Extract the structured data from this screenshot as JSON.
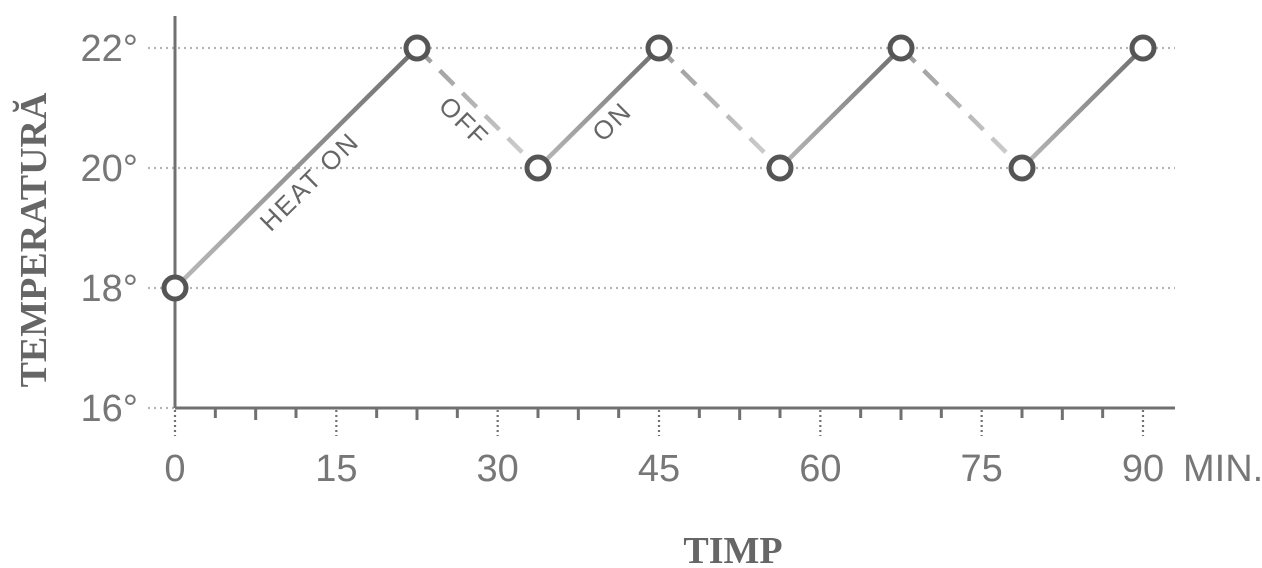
{
  "chart_data": {
    "type": "line",
    "title": "",
    "xlabel": "TIMP",
    "ylabel": "TEMPERATURĂ",
    "x_unit": "MIN.",
    "xlim": [
      0,
      90
    ],
    "ylim": [
      16,
      22
    ],
    "x_ticks": [
      0,
      15,
      30,
      45,
      60,
      75,
      90
    ],
    "x_tick_labels": [
      "0",
      "15",
      "30",
      "45",
      "60",
      "75",
      "90"
    ],
    "y_ticks": [
      16,
      18,
      20,
      22
    ],
    "y_tick_labels": [
      "16°",
      "18°",
      "20°",
      "22°"
    ],
    "grid": true,
    "points": [
      {
        "x": 0,
        "y": 18
      },
      {
        "x": 22.5,
        "y": 22
      },
      {
        "x": 33.75,
        "y": 20
      },
      {
        "x": 45,
        "y": 22
      },
      {
        "x": 56.25,
        "y": 20
      },
      {
        "x": 67.5,
        "y": 22
      },
      {
        "x": 78.75,
        "y": 20
      },
      {
        "x": 90,
        "y": 22
      }
    ],
    "segments": [
      {
        "from": 0,
        "to": 1,
        "state": "on"
      },
      {
        "from": 1,
        "to": 2,
        "state": "off"
      },
      {
        "from": 2,
        "to": 3,
        "state": "on"
      },
      {
        "from": 3,
        "to": 4,
        "state": "off"
      },
      {
        "from": 4,
        "to": 5,
        "state": "on"
      },
      {
        "from": 5,
        "to": 6,
        "state": "off"
      },
      {
        "from": 6,
        "to": 7,
        "state": "on"
      }
    ],
    "annotations": [
      {
        "text": "HEAT ON",
        "segment": 0
      },
      {
        "text": "OFF",
        "segment": 1
      },
      {
        "text": "ON",
        "segment": 2
      }
    ],
    "colors": {
      "axis": "#707070",
      "grid": "#b5b5b5",
      "line_light": "#b9b9b9",
      "line_dark": "#707070",
      "marker_stroke": "#555555"
    }
  }
}
